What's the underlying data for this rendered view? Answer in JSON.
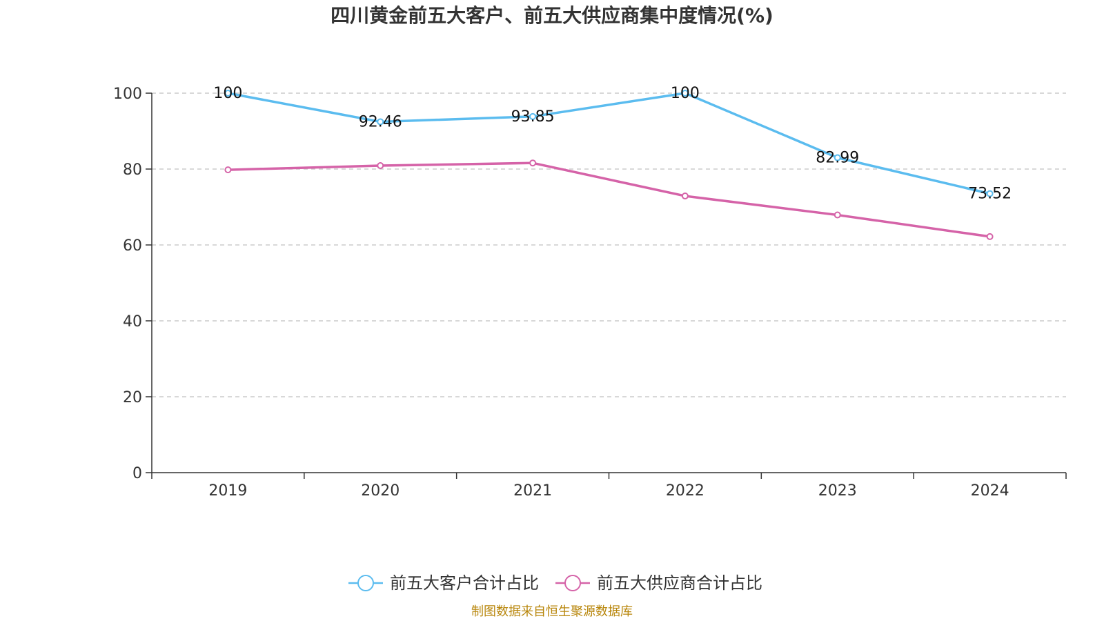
{
  "chart_data": {
    "type": "line",
    "title": "四川黄金前五大客户、前五大供应商集中度情况(%)",
    "categories": [
      "2019",
      "2020",
      "2021",
      "2022",
      "2023",
      "2024"
    ],
    "ylim": [
      0,
      100
    ],
    "yticks": [
      0,
      20,
      40,
      60,
      80,
      100
    ],
    "grid": true,
    "legend_position": "bottom",
    "series": [
      {
        "name": "前五大客户合计占比",
        "color": "#5bbcef",
        "values": [
          100,
          92.46,
          93.85,
          100,
          82.99,
          73.52
        ],
        "labels": [
          "100",
          "92.46",
          "93.85",
          "100",
          "82.99",
          "73.52"
        ]
      },
      {
        "name": "前五大供应商合计占比",
        "color": "#d563a8",
        "values": [
          79.8,
          80.9,
          81.6,
          72.9,
          67.9,
          62.2
        ],
        "labels": []
      }
    ]
  },
  "footer": {
    "source": "制图数据来自恒生聚源数据库"
  }
}
